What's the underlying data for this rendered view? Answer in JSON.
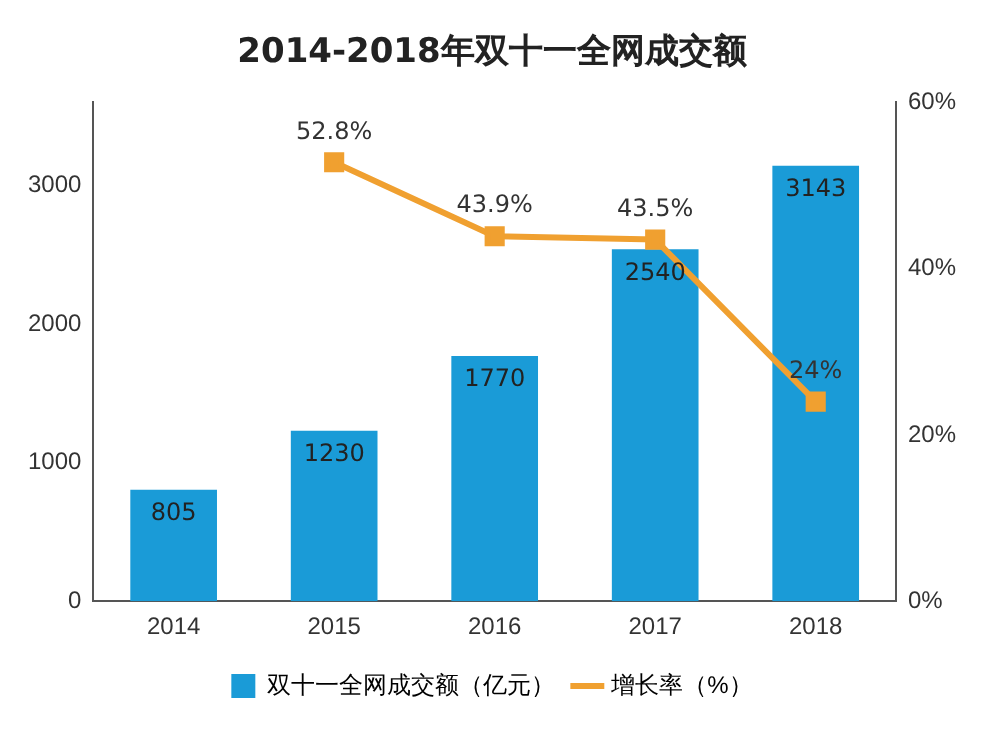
{
  "chart_data": {
    "type": "bar",
    "title": "2014-2018年双十一全网成交额",
    "categories": [
      "2014",
      "2015",
      "2016",
      "2017",
      "2018"
    ],
    "series": [
      {
        "name": "双十一全网成交额（亿元）",
        "color": "#1a9bd7",
        "values": [
          805,
          1230,
          1770,
          2540,
          3143
        ],
        "value_labels": [
          "805",
          "1230",
          "1770",
          "2540",
          "3143"
        ]
      },
      {
        "name": "增长率（%）",
        "type": "line",
        "axis": "y2",
        "color": "#f0a030",
        "values": [
          null,
          52.8,
          43.9,
          43.5,
          24
        ],
        "value_labels": [
          null,
          "52.8%",
          "43.9%",
          "43.5%",
          "24%"
        ],
        "marker": "square"
      }
    ],
    "ylim": [
      0,
      3600
    ],
    "yticks": [
      0,
      1000,
      2000,
      3000
    ],
    "y2lim": [
      0,
      60
    ],
    "y2ticks": [
      {
        "value": 0,
        "label": "0%"
      },
      {
        "value": 20,
        "label": "20%"
      },
      {
        "value": 40,
        "label": "40%"
      },
      {
        "value": 60,
        "label": "60%"
      }
    ],
    "grid": false,
    "legend": "bottom"
  }
}
